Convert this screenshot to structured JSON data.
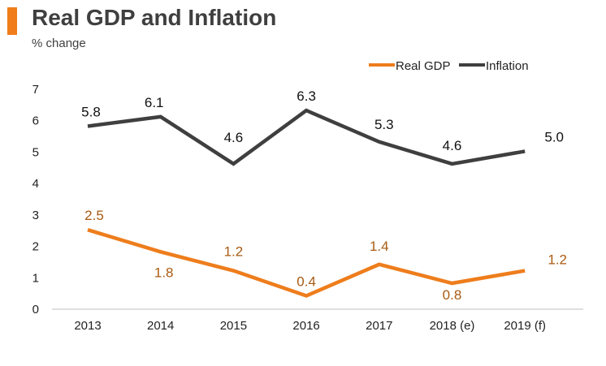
{
  "header": {
    "title": "Real GDP and Inflation",
    "subtitle": "% change"
  },
  "colors": {
    "accent": "#f07d1a",
    "real_gdp": "#ee7d1c",
    "real_gdp_label": "#a85a12",
    "inflation": "#3f3f3f",
    "inflation_label": "#111111",
    "axis": "#bfbfbf"
  },
  "chart_data": {
    "type": "line",
    "title": "Real GDP and Inflation",
    "subtitle": "% change",
    "categories": [
      "2013",
      "2014",
      "2015",
      "2016",
      "2017",
      "2018 (e)",
      "2019 (f)"
    ],
    "series": [
      {
        "name": "Real GDP",
        "values": [
          2.5,
          1.8,
          1.2,
          0.4,
          1.4,
          0.8,
          1.2
        ],
        "labels": [
          "2.5",
          "1.8",
          "1.2",
          "0.4",
          "1.4",
          "0.8",
          "1.2"
        ]
      },
      {
        "name": "Inflation",
        "values": [
          5.8,
          6.1,
          4.6,
          6.3,
          5.3,
          4.6,
          5.0
        ],
        "labels": [
          "5.8",
          "6.1",
          "4.6",
          "6.3",
          "5.3",
          "4.6",
          "5.0"
        ]
      }
    ],
    "yticks": [
      "0",
      "1",
      "2",
      "3",
      "4",
      "5",
      "6",
      "7"
    ],
    "ylim": [
      0,
      7
    ],
    "xlabel": "",
    "ylabel": "",
    "grid": false,
    "legend": "top-right"
  }
}
